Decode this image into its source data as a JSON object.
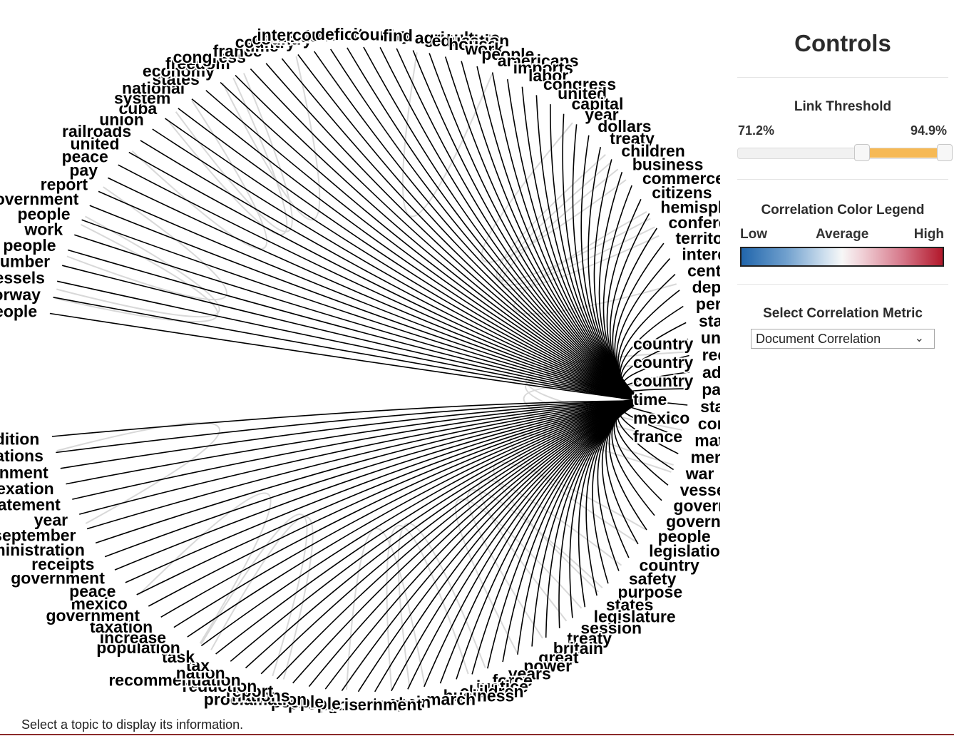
{
  "controls": {
    "title": "Controls",
    "threshold": {
      "title": "Link Threshold",
      "low_label": "71.2%",
      "high_label": "94.9%",
      "low_value": 71.2,
      "high_value": 94.9
    },
    "legend": {
      "title": "Correlation Color Legend",
      "low": "Low",
      "average": "Average",
      "high": "High",
      "colors": {
        "low": "#2166ac",
        "average": "#f7f7f7",
        "high": "#b2182b"
      }
    },
    "metric": {
      "title": "Select Correlation Metric",
      "selected": "Document Correlation"
    }
  },
  "status_text": "Select a topic to display its information.",
  "graph": {
    "link_color": "#000000",
    "hub_topics": [
      "country",
      "country",
      "country",
      "time",
      "mexico",
      "france"
    ],
    "topics": [
      "people",
      "norway",
      "vessels",
      "number",
      "people",
      "work",
      "people",
      "government",
      "report",
      "pay",
      "peace",
      "united",
      "railroads",
      "union",
      "cuba",
      "system",
      "national",
      "states",
      "economy",
      "freedom",
      "congress",
      "france",
      "time",
      "country",
      "country",
      "mexico",
      "intercourse",
      "deficit",
      "country",
      "find",
      "agriculture",
      "education",
      "house",
      "work",
      "people",
      "americans",
      "imports",
      "labor",
      "congress",
      "united",
      "capital",
      "year",
      "dollars",
      "treaty",
      "children",
      "business",
      "commerce",
      "citizens",
      "hemisphere",
      "conference",
      "territory",
      "interest",
      "century",
      "department",
      "period",
      "states",
      "united",
      "recovery",
      "administration",
      "pacific",
      "states",
      "constitution",
      "matter",
      "men",
      "war",
      "vessels",
      "government",
      "government",
      "people",
      "legislation",
      "country",
      "safety",
      "purpose",
      "states",
      "legislature",
      "session",
      "treaty",
      "britain",
      "great",
      "power",
      "years",
      "force",
      "justice",
      "children",
      "business",
      "march",
      "spain",
      "trade",
      "government",
      "paris",
      "people",
      "people",
      "proclamation",
      "nations",
      "report",
      "reduction",
      "recommendation",
      "nation",
      "tax",
      "task",
      "population",
      "increase",
      "taxation",
      "government",
      "mexico",
      "peace",
      "government",
      "receipts",
      "administration",
      "september",
      "year",
      "statement",
      "annexation",
      "government",
      "relations",
      "condition"
    ]
  }
}
